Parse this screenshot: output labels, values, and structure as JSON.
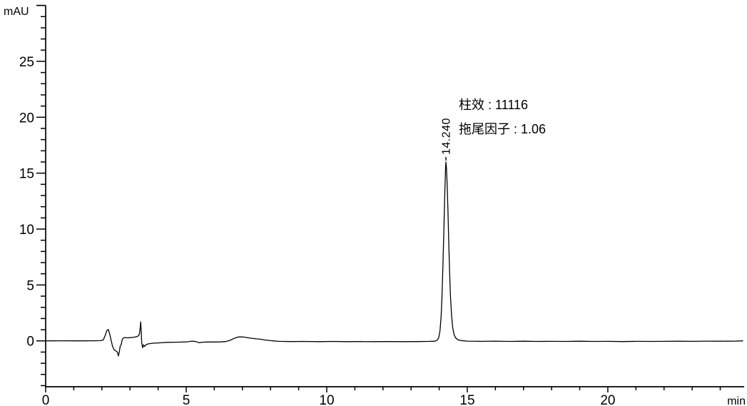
{
  "chart_data": {
    "type": "line",
    "title": "",
    "xlabel": "min",
    "ylabel": "mAU",
    "grid": false,
    "legend": false,
    "background_color": "#ffffff",
    "line_color": "#000000",
    "x_axis": {
      "min": 0,
      "max": 24.85,
      "major_ticks": [
        0,
        5,
        10,
        15,
        20
      ],
      "minor_tick_step": 1,
      "unit_label": "min"
    },
    "y_axis": {
      "min": -4.1,
      "max": 30,
      "major_ticks": [
        0,
        5,
        10,
        15,
        20,
        25
      ],
      "minor_tick_step": 1,
      "end_cap_tick": 30,
      "unit_label": "mAU"
    },
    "peak": {
      "retention_time_label": "14.240",
      "retention_time_min": 14.24,
      "height_mAU": 16.0
    },
    "annotations": [
      {
        "id": "column-efficiency",
        "text": "柱效 : 11116"
      },
      {
        "id": "tailing-factor",
        "text": "拖尾因子 : 1.06"
      }
    ],
    "series": [
      {
        "name": "detector-signal",
        "color": "#000000",
        "points": [
          [
            0,
            0
          ],
          [
            0.6,
            0.01
          ],
          [
            1.2,
            0
          ],
          [
            1.7,
            0.01
          ],
          [
            1.95,
            0.02
          ],
          [
            2.05,
            0.08
          ],
          [
            2.12,
            0.5
          ],
          [
            2.18,
            0.95
          ],
          [
            2.23,
            1.02
          ],
          [
            2.28,
            0.6
          ],
          [
            2.33,
            0.05
          ],
          [
            2.38,
            -0.5
          ],
          [
            2.44,
            -0.8
          ],
          [
            2.5,
            -0.9
          ],
          [
            2.55,
            -1.0
          ],
          [
            2.59,
            -1.35
          ],
          [
            2.62,
            -1.0
          ],
          [
            2.65,
            -0.5
          ],
          [
            2.69,
            -0.3
          ],
          [
            2.72,
            0.1
          ],
          [
            2.76,
            0.25
          ],
          [
            2.82,
            0.3
          ],
          [
            2.9,
            0.27
          ],
          [
            3.0,
            0.29
          ],
          [
            3.1,
            0.31
          ],
          [
            3.2,
            0.36
          ],
          [
            3.28,
            0.42
          ],
          [
            3.33,
            0.55
          ],
          [
            3.36,
            1.1
          ],
          [
            3.38,
            1.7
          ],
          [
            3.4,
            0.9
          ],
          [
            3.42,
            -0.2
          ],
          [
            3.45,
            -0.62
          ],
          [
            3.48,
            -0.35
          ],
          [
            3.52,
            -0.5
          ],
          [
            3.57,
            -0.35
          ],
          [
            3.63,
            -0.28
          ],
          [
            3.72,
            -0.24
          ],
          [
            3.85,
            -0.2
          ],
          [
            4.0,
            -0.18
          ],
          [
            4.3,
            -0.13
          ],
          [
            4.6,
            -0.12
          ],
          [
            4.9,
            -0.1
          ],
          [
            5.05,
            -0.08
          ],
          [
            5.2,
            -0.02
          ],
          [
            5.35,
            -0.06
          ],
          [
            5.45,
            -0.16
          ],
          [
            5.6,
            -0.11
          ],
          [
            5.8,
            -0.1
          ],
          [
            6.0,
            -0.1
          ],
          [
            6.2,
            -0.09
          ],
          [
            6.4,
            -0.06
          ],
          [
            6.55,
            0.04
          ],
          [
            6.7,
            0.22
          ],
          [
            6.85,
            0.35
          ],
          [
            7.0,
            0.36
          ],
          [
            7.15,
            0.3
          ],
          [
            7.3,
            0.24
          ],
          [
            7.5,
            0.18
          ],
          [
            7.65,
            0.15
          ],
          [
            7.8,
            0.08
          ],
          [
            8.0,
            0.02
          ],
          [
            8.3,
            -0.04
          ],
          [
            8.7,
            -0.06
          ],
          [
            9.2,
            -0.05
          ],
          [
            9.7,
            -0.07
          ],
          [
            10.2,
            -0.05
          ],
          [
            10.7,
            -0.07
          ],
          [
            11.2,
            -0.06
          ],
          [
            11.7,
            -0.07
          ],
          [
            12.2,
            -0.06
          ],
          [
            12.7,
            -0.07
          ],
          [
            13.2,
            -0.06
          ],
          [
            13.6,
            -0.05
          ],
          [
            13.85,
            -0.03
          ],
          [
            13.92,
            0.05
          ],
          [
            13.98,
            0.25
          ],
          [
            14.03,
            0.9
          ],
          [
            14.07,
            2.2
          ],
          [
            14.1,
            4.0
          ],
          [
            14.13,
            6.5
          ],
          [
            14.16,
            9.3
          ],
          [
            14.19,
            12.2
          ],
          [
            14.21,
            14.0
          ],
          [
            14.23,
            15.6
          ],
          [
            14.24,
            16.0
          ],
          [
            14.26,
            15.4
          ],
          [
            14.28,
            14.2
          ],
          [
            14.31,
            11.8
          ],
          [
            14.34,
            9.0
          ],
          [
            14.37,
            6.3
          ],
          [
            14.4,
            4.1
          ],
          [
            14.44,
            2.3
          ],
          [
            14.48,
            1.2
          ],
          [
            14.53,
            0.55
          ],
          [
            14.59,
            0.25
          ],
          [
            14.67,
            0.1
          ],
          [
            14.78,
            0.03
          ],
          [
            15.0,
            -0.02
          ],
          [
            15.5,
            -0.04
          ],
          [
            16.0,
            -0.02
          ],
          [
            16.5,
            -0.05
          ],
          [
            17.0,
            -0.03
          ],
          [
            17.5,
            -0.05
          ],
          [
            18.0,
            -0.04
          ],
          [
            18.5,
            -0.05
          ],
          [
            19.0,
            -0.03
          ],
          [
            19.5,
            -0.05
          ],
          [
            20.0,
            -0.04
          ],
          [
            20.5,
            -0.06
          ],
          [
            21.0,
            -0.04
          ],
          [
            21.5,
            -0.05
          ],
          [
            22.0,
            -0.04
          ],
          [
            22.5,
            -0.03
          ],
          [
            23.0,
            -0.04
          ],
          [
            23.5,
            -0.02
          ],
          [
            24.0,
            -0.03
          ],
          [
            24.5,
            -0.02
          ],
          [
            24.8,
            0
          ]
        ]
      }
    ]
  }
}
